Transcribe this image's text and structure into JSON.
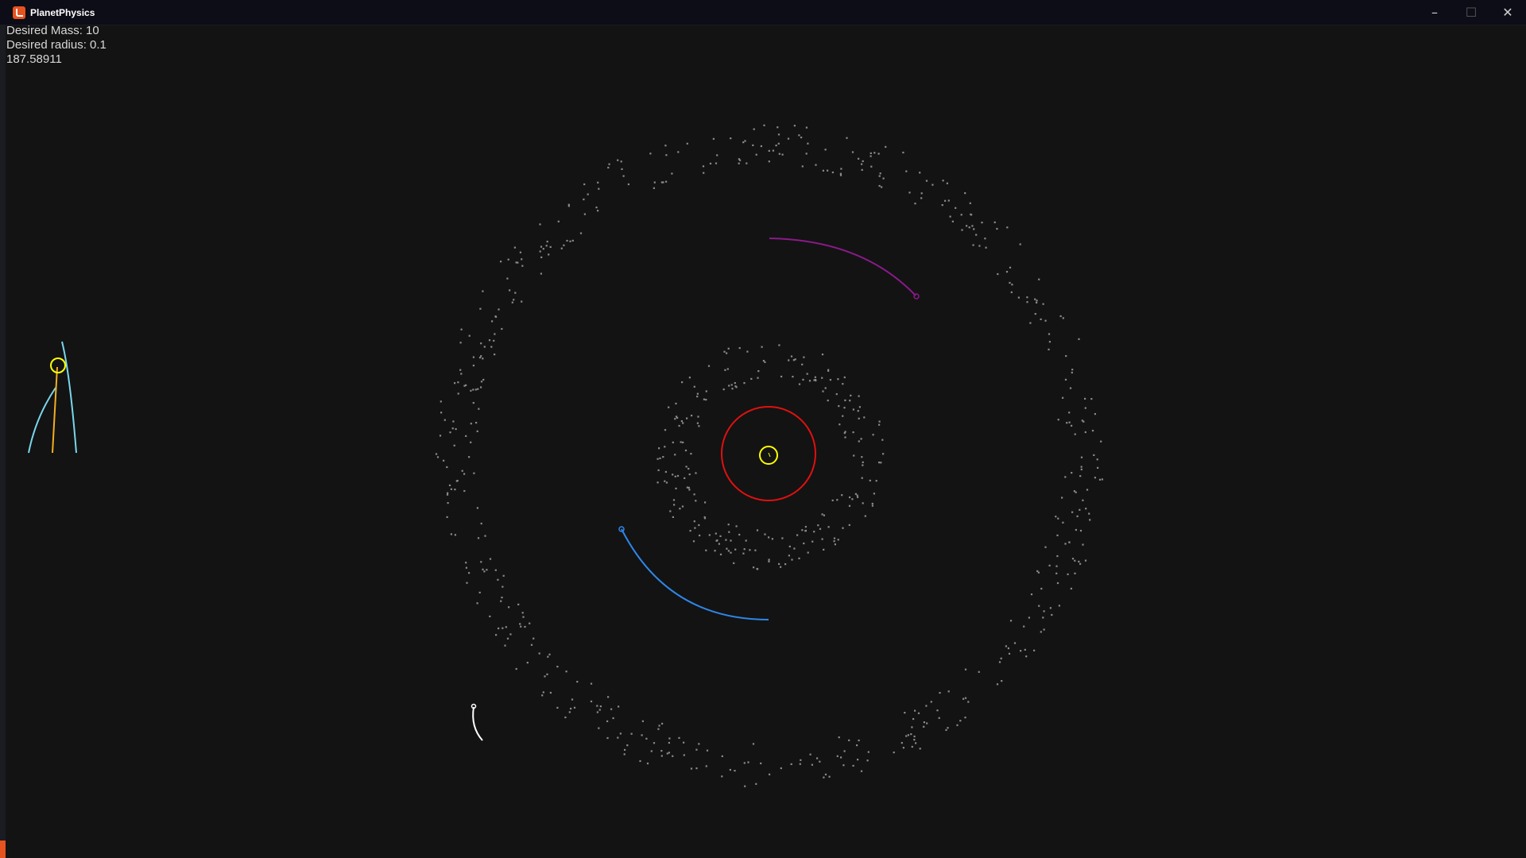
{
  "window": {
    "title": "PlanetPhysics",
    "controls": {
      "minimize": "–",
      "maximize": "☐",
      "close": "✕"
    }
  },
  "hud": {
    "mass_label": "Desired Mass: 10",
    "radius_label": "Desired radius: 0.1",
    "value": "187.58911"
  },
  "scene": {
    "colors": {
      "background": "#131313",
      "particles": "#8a8a8a",
      "sun": "#ffff00",
      "sun_ring": "#e01010",
      "purple_trail": "#8b1a8b",
      "blue_trail": "#2e86e8",
      "cyan_trail": "#7ad6ee",
      "orange_trail": "#f0b020",
      "white_trail": "#ffffff"
    },
    "icons": [
      "planetphysics-app-icon",
      "minimize-icon",
      "maximize-icon",
      "close-icon"
    ]
  }
}
